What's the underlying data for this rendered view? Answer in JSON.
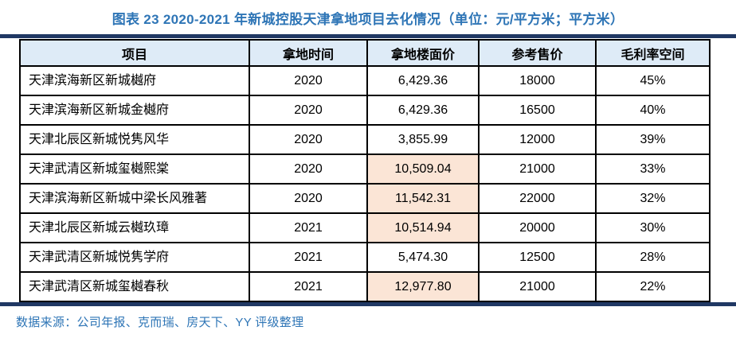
{
  "title": "图表 23 2020-2021 年新城控股天津拿地项目去化情况（单位：元/平方米；平方米）",
  "table": {
    "headers": [
      "项目",
      "拿地时间",
      "拿地楼面价",
      "参考售价",
      "毛利率空间"
    ],
    "rows": [
      {
        "project": "天津滨海新区新城樾府",
        "year": "2020",
        "floor_price": "6,429.36",
        "ref_price": "18000",
        "margin": "45%",
        "highlight": false
      },
      {
        "project": "天津滨海新区新城金樾府",
        "year": "2020",
        "floor_price": "6,429.36",
        "ref_price": "16500",
        "margin": "40%",
        "highlight": false
      },
      {
        "project": "天津北辰区新城悦隽风华",
        "year": "2020",
        "floor_price": "3,855.99",
        "ref_price": "12000",
        "margin": "39%",
        "highlight": false
      },
      {
        "project": "天津武清区新城玺樾熙棠",
        "year": "2020",
        "floor_price": "10,509.04",
        "ref_price": "21000",
        "margin": "33%",
        "highlight": true
      },
      {
        "project": "天津滨海新区新城中梁长风雅著",
        "year": "2020",
        "floor_price": "11,542.31",
        "ref_price": "22000",
        "margin": "32%",
        "highlight": true
      },
      {
        "project": "天津北辰区新城云樾玖璋",
        "year": "2021",
        "floor_price": "10,514.94",
        "ref_price": "20000",
        "margin": "30%",
        "highlight": true
      },
      {
        "project": "天津武清区新城悦隽学府",
        "year": "2021",
        "floor_price": "5,474.30",
        "ref_price": "12500",
        "margin": "28%",
        "highlight": false
      },
      {
        "project": "天津武清区新城玺樾春秋",
        "year": "2021",
        "floor_price": "12,977.80",
        "ref_price": "21000",
        "margin": "22%",
        "highlight": true
      }
    ]
  },
  "footer": {
    "source_text": "数据来源：公司年报、克而瑞、房天下、YY 评级整理"
  },
  "colors": {
    "title_blue": "#2E75B6",
    "navy_rule": "#203864",
    "header_bg": "#DEEBF7",
    "highlight_bg": "#FBE5D6",
    "border_black": "#000000",
    "footer_blue": "#2E75B6"
  }
}
